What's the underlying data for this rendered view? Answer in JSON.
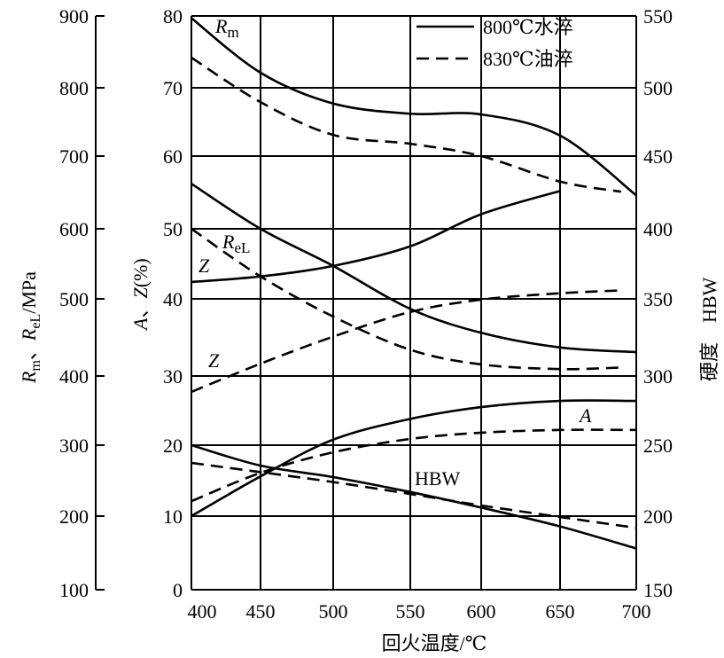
{
  "chart_data": {
    "type": "line",
    "title": "",
    "xlabel": "回火温度/℃",
    "ylabel_left": "Rm、ReL/MPa",
    "ylabel_left_parts": {
      "R1": "R",
      "m": "m",
      "sep": "、",
      "R2": "R",
      "eL": "eL",
      "unit": "/MPa"
    },
    "ylabel_middle": "A,Z(%)",
    "ylabel_middle_parts": {
      "A": "A",
      "comma": "、",
      "Z": "Z",
      "unit": "(%)"
    },
    "ylabel_right": "硬度　HBW",
    "x_ticks": [
      "400",
      "450",
      "500",
      "550",
      "600",
      "650",
      "700"
    ],
    "xlim": [
      400,
      700
    ],
    "y_left_ticks": [
      "100",
      "200",
      "300",
      "400",
      "500",
      "600",
      "700",
      "800",
      "900"
    ],
    "y_left_lim": [
      100,
      900
    ],
    "y_middle_ticks": [
      "0",
      "10",
      "20",
      "30",
      "40",
      "50",
      "60",
      "70",
      "80"
    ],
    "y_middle_lim": [
      0,
      80
    ],
    "y_right_ticks": [
      "150",
      "200",
      "250",
      "300",
      "350",
      "400",
      "450",
      "500",
      "550"
    ],
    "y_right_lim": [
      150,
      550
    ],
    "grid": true,
    "legend": {
      "placement": "top-right",
      "entries": [
        {
          "label": "800℃水淬",
          "style": "solid"
        },
        {
          "label": "830℃油淬",
          "style": "dashed"
        }
      ]
    },
    "annotations": {
      "Rm": {
        "main": "R",
        "sub": "m"
      },
      "ReL": {
        "main": "R",
        "sub": "eL"
      },
      "Z_solid": "Z",
      "Z_dashed": "Z",
      "A": "A",
      "HBW": "HBW"
    },
    "series": [
      {
        "name": "Rm 800℃水淬",
        "axis": "left",
        "style": "solid",
        "x": [
          400,
          450,
          500,
          550,
          600,
          650,
          700
        ],
        "y": [
          897,
          821,
          777,
          762,
          761,
          730,
          646
        ]
      },
      {
        "name": "Rm 830℃油淬",
        "axis": "left",
        "style": "dashed",
        "x": [
          400,
          450,
          500,
          550,
          600,
          650,
          690
        ],
        "y": [
          842,
          779,
          731,
          718,
          700,
          665,
          651
        ]
      },
      {
        "name": "ReL 800℃水淬",
        "axis": "left",
        "style": "solid",
        "x": [
          400,
          450,
          500,
          550,
          600,
          650,
          700
        ],
        "y": [
          662,
          600,
          547,
          487,
          456,
          437,
          431
        ]
      },
      {
        "name": "ReL 830℃油淬",
        "axis": "left",
        "style": "dashed",
        "x": [
          400,
          450,
          500,
          550,
          600,
          650,
          690
        ],
        "y": [
          600,
          532,
          477,
          434,
          415,
          409,
          411
        ]
      },
      {
        "name": "Z 800℃水淬",
        "axis": "middle",
        "style": "solid",
        "x": [
          400,
          450,
          500,
          550,
          600,
          650
        ],
        "y": [
          42.4,
          43.2,
          44.7,
          47.5,
          52.0,
          55.2
        ]
      },
      {
        "name": "Z 830℃油淬",
        "axis": "middle",
        "style": "dashed",
        "x": [
          400,
          450,
          500,
          550,
          600,
          650,
          690
        ],
        "y": [
          27.7,
          31.6,
          35.1,
          38.3,
          39.9,
          40.8,
          41.2
        ]
      },
      {
        "name": "A 800℃水淬",
        "axis": "middle",
        "style": "solid",
        "x": [
          400,
          450,
          500,
          550,
          600,
          650,
          700
        ],
        "y": [
          10.0,
          15.6,
          20.8,
          23.8,
          25.5,
          26.4,
          26.4
        ]
      },
      {
        "name": "A 830℃油淬",
        "axis": "middle",
        "style": "dashed",
        "x": [
          400,
          450,
          500,
          550,
          600,
          650,
          700
        ],
        "y": [
          12.1,
          16.1,
          19.0,
          20.9,
          21.8,
          22.2,
          22.2
        ]
      },
      {
        "name": "HBW 800℃水淬",
        "axis": "right",
        "style": "solid",
        "x": [
          400,
          450,
          500,
          550,
          600,
          650,
          700
        ],
        "y": [
          250,
          235.6,
          227.5,
          217,
          206,
          193,
          178
        ]
      },
      {
        "name": "HBW 830℃油淬",
        "axis": "right",
        "style": "dashed",
        "x": [
          400,
          450,
          500,
          550,
          600,
          650,
          700
        ],
        "y": [
          237.5,
          231,
          224,
          215.6,
          207.5,
          199.4,
          192
        ]
      }
    ]
  }
}
